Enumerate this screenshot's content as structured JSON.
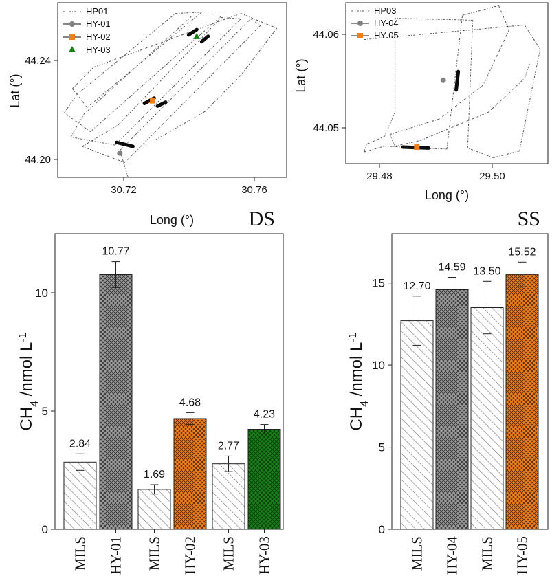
{
  "chart_data": [
    {
      "type": "scatter",
      "panel": "top-left",
      "xlabel": "Long (°)",
      "ylabel": "Lat (°)",
      "xticks": [
        "30.72",
        "30.76"
      ],
      "yticks": [
        "44.20",
        "44.24"
      ],
      "xlim": [
        30.7,
        30.77
      ],
      "ylim": [
        44.197,
        44.262
      ],
      "legend": [
        {
          "label": "HP01",
          "marker": "line",
          "color": "#555555"
        },
        {
          "label": "HY-01",
          "marker": "circle",
          "color": "#808080"
        },
        {
          "label": "HY-02",
          "marker": "square",
          "color": "#f07f1a"
        },
        {
          "label": "HY-03",
          "marker": "triangle",
          "color": "#1a7f1a"
        }
      ],
      "track_legs": [
        [
          [
            30.7215,
            44.197
          ],
          [
            30.719,
            44.207
          ]
        ],
        [
          [
            30.719,
            44.207
          ],
          [
            30.759,
            44.256
          ]
        ],
        [
          [
            30.759,
            44.256
          ],
          [
            30.762,
            44.2535
          ]
        ],
        [
          [
            30.762,
            44.2535
          ],
          [
            30.7205,
            44.2025
          ]
        ],
        [
          [
            30.7205,
            44.2025
          ],
          [
            30.7075,
            44.2085
          ]
        ],
        [
          [
            30.7075,
            44.2085
          ],
          [
            30.7185,
            44.2165
          ]
        ],
        [
          [
            30.7185,
            44.2165
          ],
          [
            30.75,
            44.2565
          ]
        ],
        [
          [
            30.75,
            44.2565
          ],
          [
            30.756,
            44.256
          ]
        ],
        [
          [
            30.756,
            44.256
          ],
          [
            30.7175,
            44.209
          ]
        ],
        [
          [
            30.7175,
            44.209
          ],
          [
            30.704,
            44.212
          ]
        ],
        [
          [
            30.704,
            44.212
          ],
          [
            30.708,
            44.2205
          ]
        ],
        [
          [
            30.708,
            44.2205
          ],
          [
            30.741,
            44.257
          ]
        ],
        [
          [
            30.741,
            44.257
          ],
          [
            30.75,
            44.257
          ]
        ],
        [
          [
            30.75,
            44.257
          ],
          [
            30.71,
            44.214
          ]
        ],
        [
          [
            30.71,
            44.214
          ],
          [
            30.702,
            44.221
          ]
        ],
        [
          [
            30.702,
            44.221
          ],
          [
            30.706,
            44.228
          ]
        ],
        [
          [
            30.706,
            44.228
          ],
          [
            30.736,
            44.258
          ]
        ],
        [
          [
            30.736,
            44.258
          ],
          [
            30.744,
            44.2585
          ]
        ],
        [
          [
            30.744,
            44.2585
          ],
          [
            30.709,
            44.223
          ]
        ],
        [
          [
            30.709,
            44.223
          ],
          [
            30.7045,
            44.23
          ]
        ],
        [
          [
            30.7045,
            44.23
          ],
          [
            30.711,
            44.238
          ]
        ],
        [
          [
            30.711,
            44.238
          ],
          [
            30.756,
            44.258
          ]
        ],
        [
          [
            30.756,
            44.258
          ],
          [
            30.767,
            44.2525
          ]
        ],
        [
          [
            30.767,
            44.2525
          ],
          [
            30.756,
            44.235
          ]
        ],
        [
          [
            30.756,
            44.235
          ],
          [
            30.745,
            44.2215
          ]
        ],
        [
          [
            30.745,
            44.2215
          ],
          [
            30.73,
            44.211
          ]
        ]
      ],
      "hy_segments": [
        {
          "name": "HY-01",
          "points": [
            [
              30.718,
              44.21
            ],
            [
              30.723,
              44.2085
            ]
          ]
        },
        {
          "name": "HY-02",
          "points": [
            [
              30.7265,
              44.2245
            ],
            [
              30.7295,
              44.2265
            ]
          ]
        },
        {
          "name": "HY-02",
          "points": [
            [
              30.7305,
              44.2235
            ],
            [
              30.733,
              44.225
            ]
          ]
        },
        {
          "name": "HY-03",
          "points": [
            [
              30.74,
              44.25
            ],
            [
              30.7425,
              44.252
            ]
          ]
        },
        {
          "name": "HY-03",
          "points": [
            [
              30.744,
              44.2475
            ],
            [
              30.746,
              44.2495
            ]
          ]
        }
      ],
      "markers": [
        {
          "series": "HY-01",
          "x": 30.719,
          "y": 44.206
        },
        {
          "series": "HY-02",
          "x": 30.729,
          "y": 44.2255
        },
        {
          "series": "HY-03",
          "x": 30.7425,
          "y": 44.2495
        }
      ]
    },
    {
      "type": "scatter",
      "panel": "top-right",
      "xlabel": "Long (°)",
      "ylabel": "Lat (°)",
      "xticks": [
        "29.48",
        "29.50"
      ],
      "yticks": [
        "44.05",
        "44.06"
      ],
      "xlim": [
        29.4705,
        29.5095
      ],
      "ylim": [
        44.0472,
        44.0638
      ],
      "legend": [
        {
          "label": "HP03",
          "marker": "line",
          "color": "#555555"
        },
        {
          "label": "HY-04",
          "marker": "circle",
          "color": "#808080"
        },
        {
          "label": "HY-05",
          "marker": "square",
          "color": "#f07f1a"
        }
      ],
      "track_legs": [
        [
          [
            29.474,
            44.06
          ],
          [
            29.505,
            44.0615
          ]
        ],
        [
          [
            29.505,
            44.0615
          ],
          [
            29.508,
            44.059
          ]
        ],
        [
          [
            29.508,
            44.059
          ],
          [
            29.504,
            44.0485
          ]
        ],
        [
          [
            29.504,
            44.0485
          ],
          [
            29.499,
            44.0478
          ]
        ],
        [
          [
            29.499,
            44.0478
          ],
          [
            29.494,
            44.0488
          ]
        ],
        [
          [
            29.494,
            44.0488
          ],
          [
            29.495,
            44.062
          ]
        ],
        [
          [
            29.495,
            44.062
          ],
          [
            29.48,
            44.0622
          ]
        ],
        [
          [
            29.48,
            44.0622
          ],
          [
            29.48,
            44.0525
          ]
        ],
        [
          [
            29.48,
            44.0525
          ],
          [
            29.478,
            44.05
          ]
        ],
        [
          [
            29.478,
            44.05
          ],
          [
            29.4745,
            44.0492
          ]
        ],
        [
          [
            29.4745,
            44.0492
          ],
          [
            29.474,
            44.0484
          ]
        ],
        [
          [
            29.474,
            44.0484
          ],
          [
            29.478,
            44.049
          ]
        ],
        [
          [
            29.478,
            44.049
          ],
          [
            29.4845,
            44.0488
          ]
        ],
        [
          [
            29.4845,
            44.0488
          ],
          [
            29.49,
            44.0487
          ]
        ],
        [
          [
            29.49,
            44.0487
          ],
          [
            29.493,
            44.0625
          ]
        ],
        [
          [
            29.493,
            44.0625
          ],
          [
            29.5,
            44.0635
          ]
        ],
        [
          [
            29.5,
            44.0635
          ],
          [
            29.502,
            44.061
          ]
        ],
        [
          [
            29.502,
            44.061
          ],
          [
            29.497,
            44.0553
          ]
        ],
        [
          [
            29.497,
            44.0553
          ],
          [
            29.4885,
            44.0518
          ]
        ],
        [
          [
            29.4885,
            44.0518
          ],
          [
            29.479,
            44.0502
          ]
        ],
        [
          [
            29.479,
            44.0502
          ],
          [
            29.48,
            44.049
          ]
        ],
        [
          [
            29.48,
            44.049
          ],
          [
            29.485,
            44.0496
          ]
        ],
        [
          [
            29.485,
            44.0496
          ],
          [
            29.498,
            44.0525
          ]
        ],
        [
          [
            29.498,
            44.0525
          ],
          [
            29.505,
            44.056
          ]
        ],
        [
          [
            29.505,
            44.056
          ],
          [
            29.506,
            44.0575
          ]
        ]
      ],
      "hy_segments": [
        {
          "name": "HY-04",
          "points": [
            [
              29.4918,
              44.0548
            ],
            [
              29.4922,
              44.0567
            ]
          ]
        },
        {
          "name": "HY-05",
          "points": [
            [
              29.4815,
              44.0489
            ],
            [
              29.4865,
              44.0488
            ]
          ]
        }
      ],
      "markers": [
        {
          "series": "HY-04",
          "x": 29.4893,
          "y": 44.0558
        },
        {
          "series": "HY-05",
          "x": 29.4842,
          "y": 44.0489
        }
      ]
    },
    {
      "type": "bar",
      "panel": "bottom-left",
      "title": "DS",
      "ylabel": "CH4 /nmol L-1",
      "ylim": [
        0,
        12.5
      ],
      "yticks": [
        0,
        5,
        10
      ],
      "categories": [
        "MILS",
        "HY-01",
        "MILS",
        "HY-02",
        "MILS",
        "HY-03"
      ],
      "values": [
        2.84,
        10.77,
        1.69,
        4.68,
        2.77,
        4.23
      ],
      "errors": [
        0.35,
        0.55,
        0.2,
        0.25,
        0.33,
        0.2
      ],
      "labels": [
        "2.84",
        "10.77",
        "1.69",
        "4.68",
        "2.77",
        "4.23"
      ],
      "fills": [
        "hatch",
        "grey-crosshatch",
        "hatch",
        "orange-crosshatch",
        "hatch",
        "green-crosshatch"
      ]
    },
    {
      "type": "bar",
      "panel": "bottom-right",
      "title": "SS",
      "ylabel": "CH4 /nmol L-1",
      "ylim": [
        0,
        18
      ],
      "yticks": [
        0,
        5,
        10,
        15
      ],
      "categories": [
        "MILS",
        "HY-04",
        "MILS",
        "HY-05"
      ],
      "values": [
        12.7,
        14.59,
        13.5,
        15.52
      ],
      "errors": [
        1.5,
        0.75,
        1.6,
        0.75
      ],
      "labels": [
        "12.70",
        "14.59",
        "13.50",
        "15.52"
      ],
      "fills": [
        "hatch",
        "grey-crosshatch",
        "hatch",
        "orange-crosshatch"
      ]
    }
  ],
  "ylabel_parts": {
    "main": "CH",
    "sub": "4",
    "mid": " /nmol L",
    "sup": "-1"
  },
  "colors": {
    "grey": "#8a8a8a",
    "orange": "#f07f1a",
    "green": "#1a7f1a",
    "hy_marker_grey": "#808080"
  }
}
